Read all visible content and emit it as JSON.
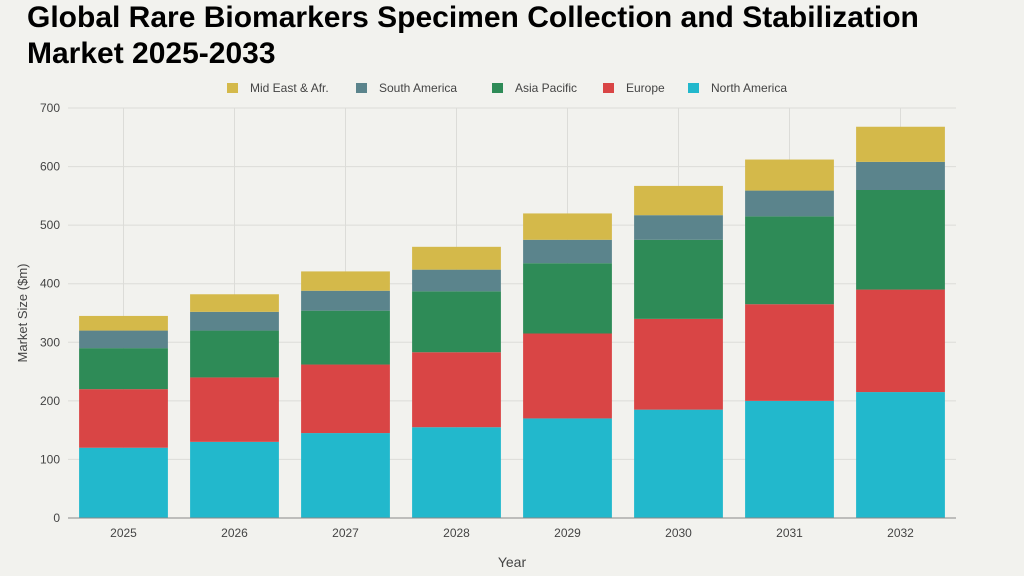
{
  "chart_data": {
    "type": "bar",
    "stacked": true,
    "title": "Global Rare Biomarkers Specimen Collection and Stabilization Market 2025-2033",
    "xlabel": "Year",
    "ylabel": "Market Size ($m)",
    "ylim": [
      0,
      700
    ],
    "yticks": [
      0,
      100,
      200,
      300,
      400,
      500,
      600,
      700
    ],
    "grid": true,
    "legend_position": "top",
    "categories": [
      "2025",
      "2026",
      "2027",
      "2028",
      "2029",
      "2030",
      "2031",
      "2032"
    ],
    "series": [
      {
        "name": "North America",
        "color": "#22b8cc",
        "values": [
          120,
          130,
          145,
          155,
          170,
          185,
          200,
          215
        ]
      },
      {
        "name": "Europe",
        "color": "#d94545",
        "values": [
          100,
          110,
          117,
          128,
          145,
          155,
          165,
          175
        ]
      },
      {
        "name": "Asia Pacific",
        "color": "#2e8b57",
        "values": [
          70,
          80,
          92,
          104,
          120,
          135,
          150,
          170
        ]
      },
      {
        "name": "South America",
        "color": "#5b848c",
        "values": [
          30,
          32,
          34,
          37,
          40,
          42,
          44,
          48
        ]
      },
      {
        "name": "Mid East & Afr.",
        "color": "#d4b94a",
        "values": [
          25,
          30,
          33,
          39,
          45,
          50,
          53,
          60
        ]
      }
    ],
    "legend_order": [
      "Mid East & Afr.",
      "South America",
      "Asia Pacific",
      "Europe",
      "North America"
    ]
  }
}
